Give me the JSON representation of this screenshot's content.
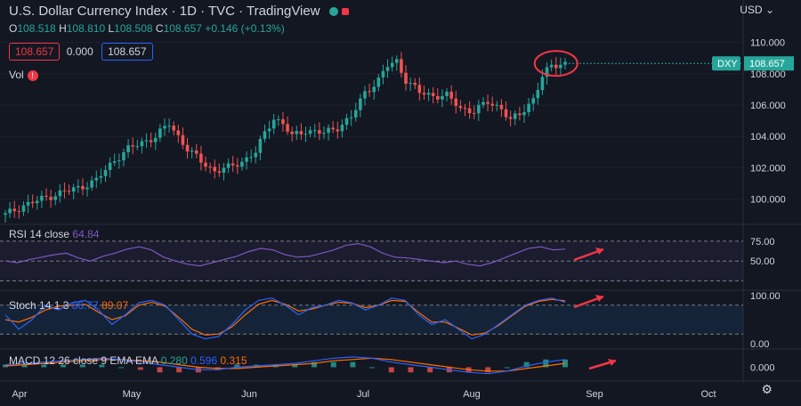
{
  "header": {
    "title": "U.S. Dollar Currency Index · 1D · TVC · TradingView",
    "ohlc": [
      {
        "k": "O",
        "v": "108.518"
      },
      {
        "k": "H",
        "v": "108.810"
      },
      {
        "k": "L",
        "v": "108.508"
      },
      {
        "k": "C",
        "v": "108.657"
      }
    ],
    "change": "+0.146 (+0.13%)",
    "bid": "108.657",
    "spread": "0.000",
    "ask": "108.657",
    "vol_label": "Vol",
    "currency": "USD"
  },
  "chart_data": {
    "type": "candlestick",
    "symbol": "DXY",
    "last_price": "108.657",
    "ylim": [
      98.5,
      111.0
    ],
    "y_ticks": [
      "110.000",
      "108.000",
      "106.000",
      "104.000",
      "102.000",
      "100.000"
    ],
    "x_ticks": [
      "Apr",
      "May",
      "Jun",
      "Jul",
      "Aug",
      "Sep",
      "Oct"
    ],
    "close_path": [
      {
        "t": 0,
        "c": 99.0
      },
      {
        "t": 4,
        "c": 99.6
      },
      {
        "t": 8,
        "c": 100.0
      },
      {
        "t": 12,
        "c": 100.4
      },
      {
        "t": 16,
        "c": 100.7
      },
      {
        "t": 20,
        "c": 101.2
      },
      {
        "t": 24,
        "c": 102.5
      },
      {
        "t": 27,
        "c": 103.2
      },
      {
        "t": 30,
        "c": 103.6
      },
      {
        "t": 33,
        "c": 104.0
      },
      {
        "t": 36,
        "c": 104.8
      },
      {
        "t": 38,
        "c": 104.0
      },
      {
        "t": 40,
        "c": 103.2
      },
      {
        "t": 43,
        "c": 102.4
      },
      {
        "t": 46,
        "c": 101.8
      },
      {
        "t": 49,
        "c": 102.0
      },
      {
        "t": 52,
        "c": 102.4
      },
      {
        "t": 55,
        "c": 103.0
      },
      {
        "t": 57,
        "c": 104.2
      },
      {
        "t": 59,
        "c": 105.2
      },
      {
        "t": 61,
        "c": 104.8
      },
      {
        "t": 63,
        "c": 104.0
      },
      {
        "t": 66,
        "c": 104.4
      },
      {
        "t": 70,
        "c": 104.2
      },
      {
        "t": 73,
        "c": 104.6
      },
      {
        "t": 76,
        "c": 105.2
      },
      {
        "t": 79,
        "c": 106.8
      },
      {
        "t": 82,
        "c": 107.6
      },
      {
        "t": 84,
        "c": 108.5
      },
      {
        "t": 86,
        "c": 108.8
      },
      {
        "t": 88,
        "c": 107.6
      },
      {
        "t": 91,
        "c": 106.8
      },
      {
        "t": 94,
        "c": 106.6
      },
      {
        "t": 97,
        "c": 106.6
      },
      {
        "t": 100,
        "c": 105.8
      },
      {
        "t": 103,
        "c": 105.6
      },
      {
        "t": 106,
        "c": 106.2
      },
      {
        "t": 109,
        "c": 105.8
      },
      {
        "t": 111,
        "c": 105.0
      },
      {
        "t": 113,
        "c": 105.4
      },
      {
        "t": 116,
        "c": 106.4
      },
      {
        "t": 118,
        "c": 107.8
      },
      {
        "t": 120,
        "c": 108.5
      },
      {
        "t": 122,
        "c": 108.66
      }
    ],
    "n_bars": 124,
    "rsi": {
      "label": "RSI 14 close",
      "value": "64.84",
      "levels": [
        "75.00",
        "50.00"
      ],
      "values": [
        50,
        48,
        52,
        55,
        58,
        60,
        54,
        50,
        56,
        60,
        65,
        68,
        64,
        55,
        50,
        46,
        44,
        48,
        52,
        56,
        62,
        66,
        64,
        58,
        55,
        56,
        60,
        64,
        70,
        72,
        68,
        60,
        55,
        54,
        52,
        50,
        48,
        50,
        46,
        44,
        48,
        54,
        60,
        66,
        68,
        64,
        65
      ]
    },
    "stoch": {
      "label": "Stoch 14 1 3",
      "k": "86.77",
      "d": "89.07",
      "levels": [
        "100.00",
        "0.00"
      ],
      "k_values": [
        60,
        30,
        50,
        80,
        70,
        85,
        90,
        70,
        40,
        60,
        85,
        90,
        80,
        50,
        20,
        10,
        15,
        40,
        70,
        90,
        95,
        80,
        60,
        75,
        80,
        90,
        85,
        70,
        80,
        95,
        90,
        60,
        40,
        50,
        30,
        10,
        20,
        40,
        60,
        80,
        90,
        95,
        86
      ],
      "d_values": [
        50,
        45,
        55,
        70,
        78,
        80,
        82,
        65,
        50,
        58,
        80,
        86,
        78,
        55,
        30,
        18,
        20,
        35,
        60,
        82,
        90,
        82,
        68,
        72,
        80,
        86,
        84,
        75,
        80,
        90,
        88,
        65,
        45,
        45,
        32,
        18,
        22,
        38,
        58,
        78,
        88,
        92,
        89
      ]
    },
    "macd": {
      "label": "MACD 12 26 close 9 EMA EMA",
      "hist": "0.280",
      "macd": "0.596",
      "signal": "0.315",
      "level": "0.000",
      "macd_values": [
        0.2,
        0.3,
        0.4,
        0.5,
        0.6,
        0.7,
        0.6,
        0.4,
        0.2,
        0.0,
        -0.2,
        -0.2,
        0.0,
        0.1,
        0.2,
        0.3,
        0.5,
        0.7,
        0.8,
        0.7,
        0.4,
        0.2,
        0.0,
        -0.2,
        -0.4,
        -0.5,
        -0.3,
        0.1,
        0.4,
        0.6
      ],
      "signal_values": [
        0.1,
        0.2,
        0.3,
        0.4,
        0.5,
        0.6,
        0.6,
        0.5,
        0.4,
        0.2,
        0.0,
        -0.1,
        -0.1,
        0.0,
        0.1,
        0.2,
        0.3,
        0.5,
        0.6,
        0.7,
        0.6,
        0.4,
        0.2,
        0.0,
        -0.2,
        -0.3,
        -0.3,
        -0.1,
        0.1,
        0.3
      ]
    }
  }
}
